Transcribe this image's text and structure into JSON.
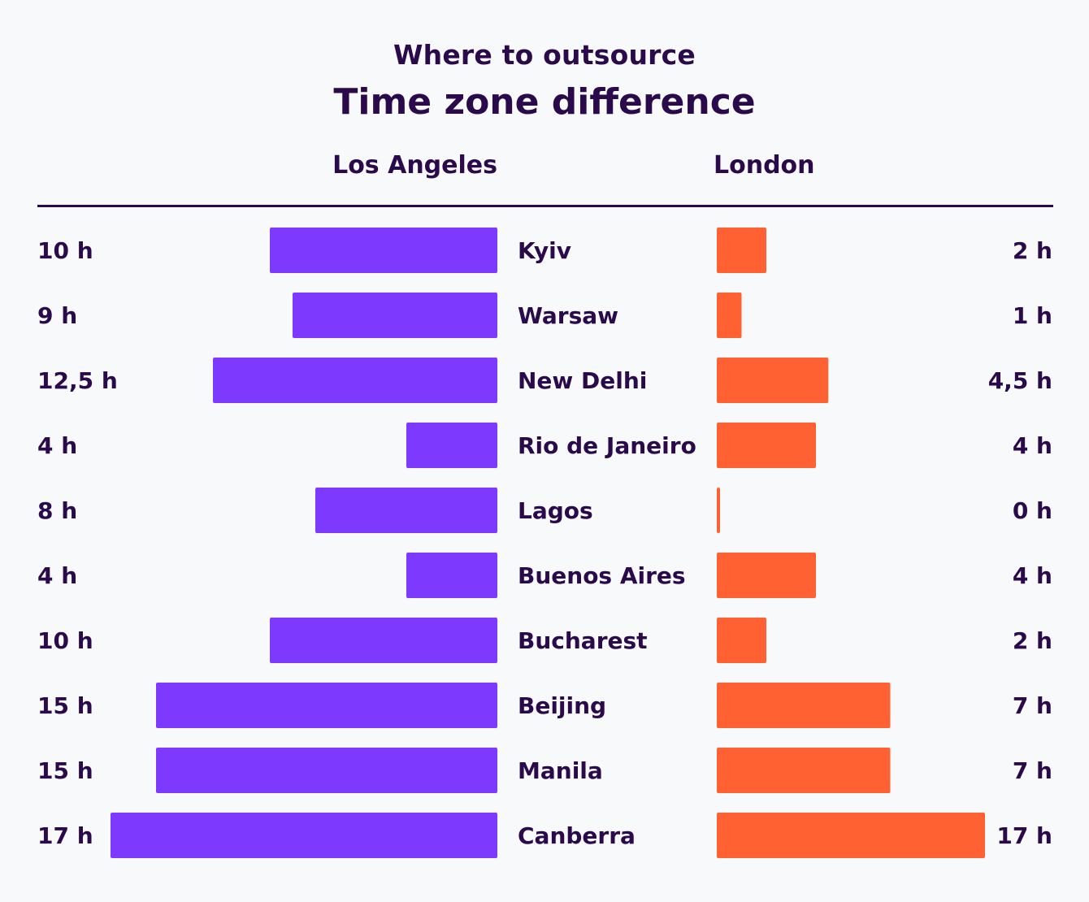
{
  "header": {
    "subtitle": "Where to outsource",
    "title": "Time zone difference"
  },
  "colors": {
    "left": "#7e39ff",
    "right": "#ff6133",
    "text": "#2a0a4a",
    "background": "#f8f9fb"
  },
  "chart_data": {
    "type": "bar",
    "subtitle": "Where to outsource",
    "title": "Time zone difference",
    "categories": [
      "Kyiv",
      "Warsaw",
      "New Delhi",
      "Rio de Janeiro",
      "Lagos",
      "Buenos Aires",
      "Bucharest",
      "Beijing",
      "Manila",
      "Canberra"
    ],
    "series": [
      {
        "name": "Los Angeles",
        "values": [
          10,
          9,
          12.5,
          4,
          8,
          4,
          10,
          15,
          15,
          17
        ],
        "labels": [
          "10 h",
          "9 h",
          "12,5 h",
          "4 h",
          "8 h",
          "4 h",
          "10 h",
          "15 h",
          "15 h",
          "17 h"
        ],
        "direction": "left"
      },
      {
        "name": "London",
        "values": [
          2,
          1,
          4.5,
          4,
          0,
          4,
          2,
          7,
          7,
          17
        ],
        "labels": [
          "2 h",
          "1 h",
          "4,5 h",
          "4 h",
          "0 h",
          "4 h",
          "2 h",
          "7 h",
          "7 h",
          "17 h"
        ],
        "direction": "right"
      }
    ]
  }
}
